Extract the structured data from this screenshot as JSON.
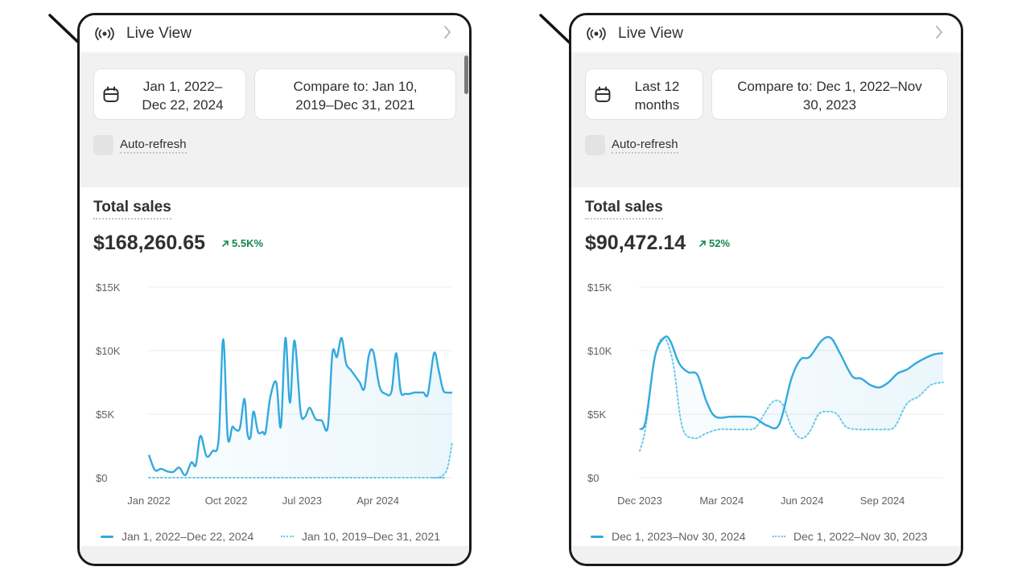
{
  "colors": {
    "accent": "#33a9de",
    "comparison": "#6ccbe8",
    "positive": "#138650",
    "panel_bg": "#f1f1f1"
  },
  "icons": [
    "broadcast-icon",
    "chevron-right-icon",
    "calendar-icon",
    "trend-up-arrow-icon",
    "annotation-arrow"
  ],
  "left": {
    "live_view_label": "Live View",
    "date_range_label": "Jan 1, 2022–\nDec 22, 2024",
    "compare_label": "Compare to: Jan 10,\n2019–Dec 31, 2021",
    "auto_refresh_label": "Auto-refresh",
    "metric_title": "Total sales",
    "metric_value": "$168,260.65",
    "trend_label": "5.5K%",
    "legend_current": "Jan 1, 2022–Dec 22, 2024",
    "legend_compare": "Jan 10, 2019–Dec 31, 2021"
  },
  "right": {
    "live_view_label": "Live View",
    "date_range_label": "Last 12\nmonths",
    "compare_label": "Compare to: Dec 1, 2022–Nov\n30, 2023",
    "auto_refresh_label": "Auto-refresh",
    "metric_title": "Total sales",
    "metric_value": "$90,472.14",
    "trend_label": "52%",
    "legend_current": "Dec 1, 2023–Nov 30, 2024",
    "legend_compare": "Dec 1, 2022–Nov 30, 2023"
  },
  "chart_data": [
    {
      "type": "line",
      "y_ticks": [
        "$15K",
        "$10K",
        "$5K",
        "$0"
      ],
      "x_ticks": [
        "Jan 2022",
        "Oct 2022",
        "Jul 2023",
        "Apr 2024"
      ],
      "x_tick_positions": [
        0,
        0.255,
        0.505,
        0.755
      ],
      "ylim": [
        0,
        15000
      ],
      "grid": true,
      "legend_position": "bottom",
      "series": [
        {
          "name": "Jan 1, 2022–Dec 22, 2024",
          "style": "solid",
          "x": [
            0,
            0.02,
            0.04,
            0.06,
            0.08,
            0.1,
            0.12,
            0.14,
            0.155,
            0.17,
            0.19,
            0.21,
            0.23,
            0.245,
            0.26,
            0.275,
            0.285,
            0.3,
            0.315,
            0.325,
            0.335,
            0.345,
            0.36,
            0.375,
            0.385,
            0.4,
            0.42,
            0.435,
            0.45,
            0.465,
            0.48,
            0.5,
            0.515,
            0.53,
            0.55,
            0.57,
            0.59,
            0.605,
            0.62,
            0.635,
            0.65,
            0.665,
            0.68,
            0.695,
            0.71,
            0.725,
            0.74,
            0.76,
            0.78,
            0.8,
            0.815,
            0.83,
            0.845,
            0.86,
            0.875,
            0.89,
            0.905,
            0.92,
            0.94,
            0.955,
            0.97,
            0.985,
            1.0
          ],
          "values": [
            1800,
            600,
            700,
            500,
            450,
            800,
            200,
            1200,
            1000,
            3300,
            1700,
            2100,
            3000,
            10900,
            3200,
            4000,
            3800,
            3900,
            6200,
            3500,
            3200,
            5200,
            3600,
            3600,
            3600,
            6300,
            7500,
            4000,
            11000,
            5900,
            10800,
            5200,
            4800,
            5500,
            4600,
            4500,
            4000,
            9800,
            9500,
            11000,
            9000,
            8500,
            8000,
            7500,
            7000,
            9600,
            9900,
            7200,
            6600,
            6800,
            9800,
            6800,
            6600,
            6600,
            6700,
            6700,
            6700,
            6600,
            9800,
            8500,
            6900,
            6700,
            6700
          ]
        },
        {
          "name": "Jan 10, 2019–Dec 31, 2021",
          "style": "dotted",
          "x": [
            0,
            0.9,
            0.93,
            0.95,
            0.97,
            0.985,
            1.0
          ],
          "values": [
            0,
            0,
            0,
            0,
            200,
            800,
            2800
          ]
        }
      ]
    },
    {
      "type": "line",
      "y_ticks": [
        "$15K",
        "$10K",
        "$5K",
        "$0"
      ],
      "x_ticks": [
        "Dec 2023",
        "Mar 2024",
        "Jun 2024",
        "Sep 2024"
      ],
      "x_tick_positions": [
        0,
        0.27,
        0.535,
        0.8
      ],
      "ylim": [
        0,
        15000
      ],
      "grid": true,
      "legend_position": "bottom",
      "series": [
        {
          "name": "Dec 1, 2023–Nov 30, 2024",
          "style": "solid",
          "x": [
            0,
            0.02,
            0.05,
            0.08,
            0.1,
            0.13,
            0.16,
            0.19,
            0.22,
            0.25,
            0.3,
            0.35,
            0.38,
            0.42,
            0.46,
            0.5,
            0.53,
            0.56,
            0.6,
            0.63,
            0.66,
            0.7,
            0.73,
            0.76,
            0.79,
            0.82,
            0.85,
            0.88,
            0.91,
            0.94,
            0.97,
            1.0
          ],
          "values": [
            3800,
            4500,
            9500,
            11000,
            10800,
            9000,
            8300,
            8100,
            6000,
            4800,
            4800,
            4800,
            4700,
            4100,
            4200,
            7800,
            9300,
            9500,
            10800,
            11000,
            9800,
            8000,
            7800,
            7300,
            7100,
            7500,
            8200,
            8500,
            9000,
            9400,
            9700,
            9800
          ]
        },
        {
          "name": "Dec 1, 2022–Nov 30, 2023",
          "style": "dotted",
          "x": [
            0,
            0.02,
            0.05,
            0.08,
            0.11,
            0.14,
            0.18,
            0.22,
            0.26,
            0.3,
            0.34,
            0.38,
            0.41,
            0.44,
            0.47,
            0.5,
            0.53,
            0.56,
            0.59,
            0.62,
            0.65,
            0.68,
            0.72,
            0.76,
            0.8,
            0.84,
            0.88,
            0.92,
            0.96,
            1.0
          ],
          "values": [
            2100,
            4000,
            9500,
            11000,
            9000,
            4000,
            3100,
            3500,
            3800,
            3800,
            3800,
            3900,
            5000,
            6000,
            5800,
            4000,
            3100,
            3600,
            5000,
            5200,
            5000,
            4000,
            3800,
            3800,
            3800,
            4000,
            5800,
            6400,
            7300,
            7500
          ]
        }
      ]
    }
  ]
}
